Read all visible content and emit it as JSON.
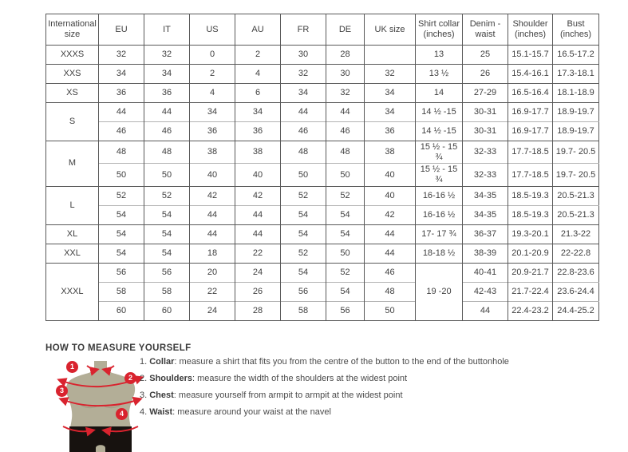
{
  "colors": {
    "accent_red": "#d9232e",
    "torso": "#b3ae97",
    "shorts": "#17120f"
  },
  "table": {
    "headers": [
      "International size",
      "EU",
      "IT",
      "US",
      "AU",
      "FR",
      "DE",
      "UK size",
      "Shirt collar (inches)",
      "Denim - waist",
      "Shoulder (inches)",
      "Bust (inches)"
    ],
    "groups": [
      {
        "size": "XXXS",
        "rows": [
          [
            "32",
            "32",
            "0",
            "2",
            "30",
            "28",
            "",
            "13",
            "25",
            "15.1-15.7",
            "16.5-17.2"
          ]
        ]
      },
      {
        "size": "XXS",
        "rows": [
          [
            "34",
            "34",
            "2",
            "4",
            "32",
            "30",
            "32",
            "13 ½",
            "26",
            "15.4-16.1",
            "17.3-18.1"
          ]
        ]
      },
      {
        "size": "XS",
        "rows": [
          [
            "36",
            "36",
            "4",
            "6",
            "34",
            "32",
            "34",
            "14",
            "27-29",
            "16.5-16.4",
            "18.1-18.9"
          ]
        ]
      },
      {
        "size": "S",
        "rows": [
          [
            "44",
            "44",
            "34",
            "34",
            "44",
            "44",
            "34",
            "14 ½ -15",
            "30-31",
            "16.9-17.7",
            "18.9-19.7"
          ],
          [
            "46",
            "46",
            "36",
            "36",
            "46",
            "46",
            "36",
            "14 ½ -15",
            "30-31",
            "16.9-17.7",
            "18.9-19.7"
          ]
        ]
      },
      {
        "size": "M",
        "rows": [
          [
            "48",
            "48",
            "38",
            "38",
            "48",
            "48",
            "38",
            "15 ½ - 15 ¾",
            "32-33",
            "17.7-18.5",
            "19.7- 20.5"
          ],
          [
            "50",
            "50",
            "40",
            "40",
            "50",
            "50",
            "40",
            "15 ½ - 15 ¾",
            "32-33",
            "17.7-18.5",
            "19.7- 20.5"
          ]
        ]
      },
      {
        "size": "L",
        "rows": [
          [
            "52",
            "52",
            "42",
            "42",
            "52",
            "52",
            "40",
            "16-16 ½",
            "34-35",
            "18.5-19.3",
            "20.5-21.3"
          ],
          [
            "54",
            "54",
            "44",
            "44",
            "54",
            "54",
            "42",
            "16-16 ½",
            "34-35",
            "18.5-19.3",
            "20.5-21.3"
          ]
        ]
      },
      {
        "size": "XL",
        "rows": [
          [
            "54",
            "54",
            "44",
            "44",
            "54",
            "54",
            "44",
            "17- 17 ¾",
            "36-37",
            "19.3-20.1",
            "21.3-22"
          ]
        ]
      },
      {
        "size": "XXL",
        "rows": [
          [
            "54",
            "54",
            "18",
            "22",
            "52",
            "50",
            "44",
            "18-18 ½",
            "38-39",
            "20.1-20.9",
            "22-22.8"
          ]
        ]
      },
      {
        "size": "XXXL",
        "merged_collar": "19 -20",
        "rows": [
          [
            "56",
            "56",
            "20",
            "24",
            "54",
            "52",
            "46",
            "40-41",
            "20.9-21.7",
            "22.8-23.6"
          ],
          [
            "58",
            "58",
            "22",
            "26",
            "56",
            "54",
            "48",
            "42-43",
            "21.7-22.4",
            "23.6-24.4"
          ],
          [
            "60",
            "60",
            "24",
            "28",
            "58",
            "56",
            "50",
            "44",
            "22.4-23.2",
            "24.4-25.2"
          ]
        ]
      }
    ]
  },
  "measure": {
    "heading": "HOW TO MEASURE YOURSELF",
    "badges": [
      "1",
      "2",
      "3",
      "4"
    ],
    "steps": [
      {
        "num": "1",
        "label": "Collar",
        "text": ": measure a shirt that fits you from the centre of the button to the end of the buttonhole"
      },
      {
        "num": "2",
        "label": "Shoulders",
        "text": ": measure the width of the shoulders at the widest point"
      },
      {
        "num": "3",
        "label": "Chest",
        "text": ": measure yourself from armpit to armpit at the widest point"
      },
      {
        "num": "4",
        "label": "Waist",
        "text": ": measure around your waist at the navel"
      }
    ]
  }
}
